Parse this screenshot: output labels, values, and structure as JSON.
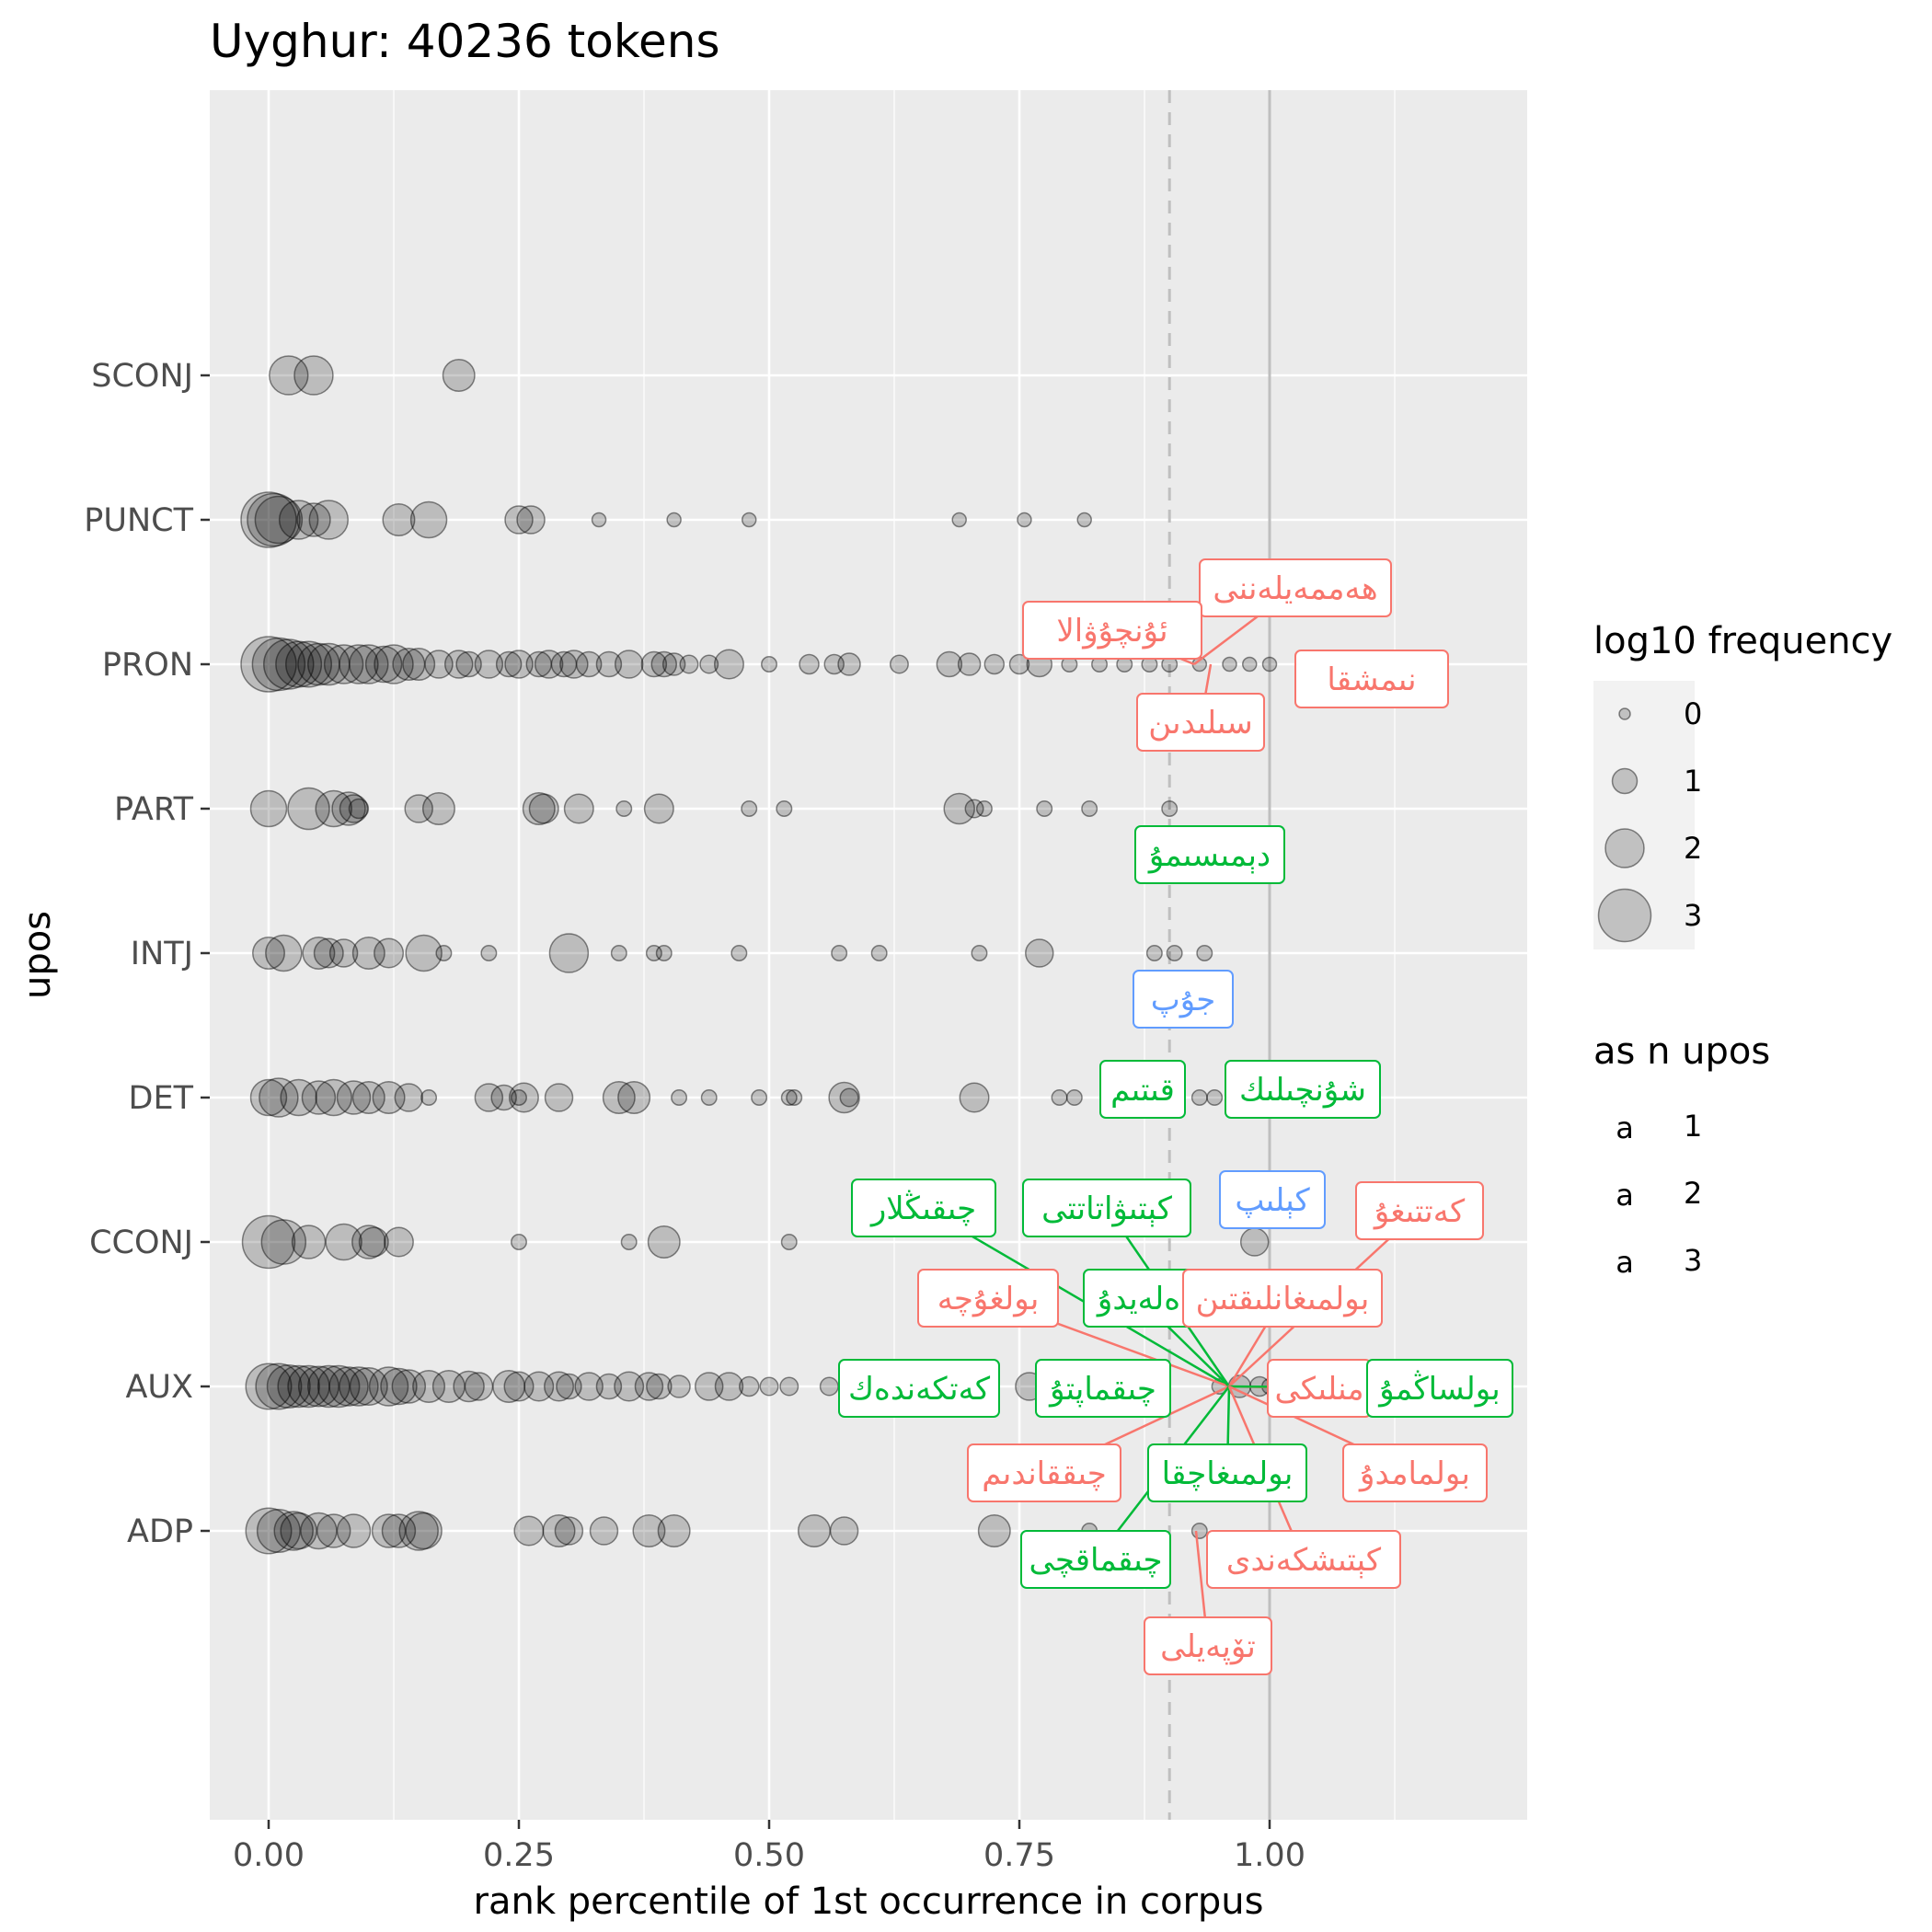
{
  "chart_data": {
    "type": "scatter",
    "title": "Uyghur: 40236 tokens",
    "xlabel": "rank percentile of 1st occurrence in corpus",
    "ylabel": "upos",
    "xlim": [
      -0.06,
      1.26
    ],
    "x_ticks": [
      "0.00",
      "0.25",
      "0.50",
      "0.75",
      "1.00"
    ],
    "x_tick_values": [
      0,
      0.25,
      0.5,
      0.75,
      1.0
    ],
    "categories": [
      "ADP",
      "AUX",
      "CCONJ",
      "DET",
      "INTJ",
      "PART",
      "PRON",
      "PUNCT",
      "SCONJ"
    ],
    "grid": true,
    "reference_lines": [
      {
        "x": 0.9,
        "style": "dashed",
        "color": "#bfbfbf"
      },
      {
        "x": 1.0,
        "style": "solid",
        "color": "#bfbfbf"
      }
    ],
    "series": [
      {
        "category": "SCONJ",
        "points": [
          [
            0.02,
            2
          ],
          [
            0.045,
            2
          ],
          [
            0.19,
            1.5
          ]
        ]
      },
      {
        "category": "PUNCT",
        "points": [
          [
            0.0,
            3.2
          ],
          [
            0.005,
            3
          ],
          [
            0.01,
            2.6
          ],
          [
            0.03,
            2
          ],
          [
            0.045,
            1.6
          ],
          [
            0.06,
            2
          ],
          [
            0.13,
            1.5
          ],
          [
            0.16,
            1.8
          ],
          [
            0.25,
            1.2
          ],
          [
            0.262,
            1.2
          ],
          [
            0.33,
            0.2
          ],
          [
            0.405,
            0.2
          ],
          [
            0.48,
            0.2
          ],
          [
            0.69,
            0.2
          ],
          [
            0.755,
            0.2
          ],
          [
            0.815,
            0.2
          ]
        ]
      },
      {
        "category": "PRON",
        "points": [
          [
            0.0,
            3.2
          ],
          [
            0.01,
            3
          ],
          [
            0.02,
            2.8
          ],
          [
            0.03,
            2.5
          ],
          [
            0.04,
            2.5
          ],
          [
            0.05,
            2.2
          ],
          [
            0.06,
            2.2
          ],
          [
            0.075,
            2
          ],
          [
            0.09,
            2
          ],
          [
            0.1,
            2
          ],
          [
            0.115,
            1.8
          ],
          [
            0.125,
            2
          ],
          [
            0.14,
            1.5
          ],
          [
            0.15,
            1.5
          ],
          [
            0.17,
            1.2
          ],
          [
            0.19,
            1.2
          ],
          [
            0.2,
            1
          ],
          [
            0.22,
            1.2
          ],
          [
            0.24,
            1
          ],
          [
            0.25,
            1.2
          ],
          [
            0.27,
            1
          ],
          [
            0.28,
            1.2
          ],
          [
            0.295,
            1
          ],
          [
            0.305,
            1.2
          ],
          [
            0.32,
            1
          ],
          [
            0.34,
            1
          ],
          [
            0.36,
            1.2
          ],
          [
            0.385,
            1
          ],
          [
            0.395,
            1
          ],
          [
            0.405,
            0.8
          ],
          [
            0.42,
            0.5
          ],
          [
            0.44,
            0.5
          ],
          [
            0.46,
            1.3
          ],
          [
            0.5,
            0.3
          ],
          [
            0.54,
            0.6
          ],
          [
            0.565,
            0.6
          ],
          [
            0.58,
            0.8
          ],
          [
            0.63,
            0.5
          ],
          [
            0.68,
            1
          ],
          [
            0.7,
            0.8
          ],
          [
            0.725,
            0.6
          ],
          [
            0.75,
            0.6
          ],
          [
            0.77,
            1
          ],
          [
            0.8,
            0.3
          ],
          [
            0.83,
            0.3
          ],
          [
            0.855,
            0.3
          ],
          [
            0.88,
            0.3
          ],
          [
            0.9,
            0.3
          ],
          [
            0.93,
            0.2
          ],
          [
            0.96,
            0.2
          ],
          [
            0.98,
            0.2
          ],
          [
            1.0,
            0.2
          ]
        ]
      },
      {
        "category": "PART",
        "points": [
          [
            0.0,
            1.8
          ],
          [
            0.04,
            2.2
          ],
          [
            0.065,
            1.8
          ],
          [
            0.08,
            1.6
          ],
          [
            0.085,
            1.2
          ],
          [
            0.09,
            0.6
          ],
          [
            0.15,
            1.2
          ],
          [
            0.17,
            1.5
          ],
          [
            0.27,
            1.5
          ],
          [
            0.275,
            1.3
          ],
          [
            0.31,
            1.3
          ],
          [
            0.355,
            0.3
          ],
          [
            0.39,
            1.3
          ],
          [
            0.48,
            0.3
          ],
          [
            0.515,
            0.3
          ],
          [
            0.69,
            1.4
          ],
          [
            0.705,
            0.5
          ],
          [
            0.715,
            0.3
          ],
          [
            0.775,
            0.3
          ],
          [
            0.82,
            0.3
          ],
          [
            0.9,
            0.3
          ]
        ]
      },
      {
        "category": "INTJ",
        "points": [
          [
            0.0,
            1.5
          ],
          [
            0.015,
            1.8
          ],
          [
            0.05,
            1.5
          ],
          [
            0.06,
            1.3
          ],
          [
            0.075,
            1.2
          ],
          [
            0.1,
            1.5
          ],
          [
            0.12,
            1.3
          ],
          [
            0.155,
            1.8
          ],
          [
            0.175,
            0.3
          ],
          [
            0.22,
            0.3
          ],
          [
            0.3,
            2
          ],
          [
            0.35,
            0.3
          ],
          [
            0.385,
            0.3
          ],
          [
            0.395,
            0.3
          ],
          [
            0.47,
            0.3
          ],
          [
            0.57,
            0.3
          ],
          [
            0.61,
            0.3
          ],
          [
            0.71,
            0.3
          ],
          [
            0.77,
            1.2
          ],
          [
            0.885,
            0.3
          ],
          [
            0.905,
            0.3
          ],
          [
            0.935,
            0.3
          ]
        ]
      },
      {
        "category": "DET",
        "points": [
          [
            0.0,
            1.8
          ],
          [
            0.01,
            2
          ],
          [
            0.03,
            1.8
          ],
          [
            0.05,
            1.6
          ],
          [
            0.065,
            1.8
          ],
          [
            0.085,
            1.6
          ],
          [
            0.1,
            1.5
          ],
          [
            0.12,
            1.5
          ],
          [
            0.14,
            1.2
          ],
          [
            0.16,
            0.3
          ],
          [
            0.22,
            1.2
          ],
          [
            0.235,
            1
          ],
          [
            0.25,
            0.3
          ],
          [
            0.255,
            1.3
          ],
          [
            0.29,
            1.2
          ],
          [
            0.35,
            1.5
          ],
          [
            0.365,
            1.5
          ],
          [
            0.41,
            0.3
          ],
          [
            0.44,
            0.3
          ],
          [
            0.49,
            0.3
          ],
          [
            0.52,
            0.3
          ],
          [
            0.525,
            0.3
          ],
          [
            0.575,
            1.4
          ],
          [
            0.58,
            0.5
          ],
          [
            0.705,
            1.3
          ],
          [
            0.79,
            0.3
          ],
          [
            0.805,
            0.3
          ],
          [
            0.93,
            0.3
          ],
          [
            0.945,
            0.3
          ],
          [
            0.965,
            0.3
          ]
        ]
      },
      {
        "category": "CCONJ",
        "points": [
          [
            0.0,
            3
          ],
          [
            0.015,
            2.4
          ],
          [
            0.04,
            1.6
          ],
          [
            0.075,
            1.8
          ],
          [
            0.1,
            1.6
          ],
          [
            0.105,
            1.3
          ],
          [
            0.13,
            1.3
          ],
          [
            0.25,
            0.3
          ],
          [
            0.36,
            0.3
          ],
          [
            0.395,
            1.5
          ],
          [
            0.52,
            0.3
          ],
          [
            0.985,
            1.2
          ]
        ]
      },
      {
        "category": "AUX",
        "points": [
          [
            0.0,
            2.5
          ],
          [
            0.01,
            2.5
          ],
          [
            0.02,
            2.3
          ],
          [
            0.03,
            2.2
          ],
          [
            0.04,
            2.2
          ],
          [
            0.05,
            2.1
          ],
          [
            0.06,
            2.2
          ],
          [
            0.07,
            2.2
          ],
          [
            0.08,
            2
          ],
          [
            0.09,
            2
          ],
          [
            0.1,
            1.9
          ],
          [
            0.12,
            2
          ],
          [
            0.13,
            1.8
          ],
          [
            0.14,
            1.6
          ],
          [
            0.16,
            1.5
          ],
          [
            0.18,
            1.5
          ],
          [
            0.2,
            1.4
          ],
          [
            0.21,
            1.2
          ],
          [
            0.24,
            1.5
          ],
          [
            0.25,
            1.3
          ],
          [
            0.27,
            1.3
          ],
          [
            0.29,
            1.3
          ],
          [
            0.3,
            1
          ],
          [
            0.32,
            1.2
          ],
          [
            0.34,
            1
          ],
          [
            0.36,
            1.3
          ],
          [
            0.38,
            1.2
          ],
          [
            0.39,
            1
          ],
          [
            0.41,
            0.8
          ],
          [
            0.44,
            1.2
          ],
          [
            0.46,
            1.2
          ],
          [
            0.48,
            0.6
          ],
          [
            0.5,
            0.5
          ],
          [
            0.52,
            0.5
          ],
          [
            0.56,
            0.5
          ],
          [
            0.58,
            0.5
          ],
          [
            0.6,
            0.5
          ],
          [
            0.64,
            0.8
          ],
          [
            0.66,
            0.6
          ],
          [
            0.7,
            0.5
          ],
          [
            0.72,
            0.5
          ],
          [
            0.76,
            1.2
          ],
          [
            0.78,
            0.6
          ],
          [
            0.82,
            0.3
          ],
          [
            0.95,
            0.3
          ],
          [
            0.97,
            0.8
          ],
          [
            0.99,
            0.6
          ],
          [
            1.0,
            0.3
          ]
        ]
      },
      {
        "category": "ADP",
        "points": [
          [
            0.0,
            2.5
          ],
          [
            0.01,
            2.3
          ],
          [
            0.025,
            2
          ],
          [
            0.03,
            1.8
          ],
          [
            0.05,
            1.8
          ],
          [
            0.065,
            1.6
          ],
          [
            0.085,
            1.6
          ],
          [
            0.12,
            1.6
          ],
          [
            0.13,
            1.6
          ],
          [
            0.15,
            2
          ],
          [
            0.155,
            1.8
          ],
          [
            0.26,
            1.3
          ],
          [
            0.29,
            1.5
          ],
          [
            0.3,
            1.2
          ],
          [
            0.335,
            1.2
          ],
          [
            0.38,
            1.5
          ],
          [
            0.405,
            1.5
          ],
          [
            0.545,
            1.5
          ],
          [
            0.575,
            1.2
          ],
          [
            0.725,
            1.5
          ],
          [
            0.82,
            0.3
          ],
          [
            0.93,
            0.3
          ]
        ]
      }
    ],
    "annotations": [
      {
        "label": "ھەممەيلەننى",
        "upos": "PRON",
        "n_upos": 1
      },
      {
        "label": "ئۇنچۇۋالا",
        "upos": "PRON",
        "n_upos": 1
      },
      {
        "label": "نىمشقا",
        "upos": "PRON",
        "n_upos": 1
      },
      {
        "label": "سىلىدىن",
        "upos": "PRON",
        "n_upos": 1
      },
      {
        "label": "دېمىسىمۇ",
        "upos": "PART",
        "n_upos": 2
      },
      {
        "label": "جۇپ",
        "upos": "INTJ",
        "n_upos": 3
      },
      {
        "label": "قىتىم",
        "upos": "DET",
        "n_upos": 2
      },
      {
        "label": "شۇنچىلىك",
        "upos": "DET",
        "n_upos": 2
      },
      {
        "label": "كېلىپ",
        "upos": "CCONJ",
        "n_upos": 3
      },
      {
        "label": "چىقىڭلار",
        "upos": "AUX",
        "n_upos": 2
      },
      {
        "label": "كېتىۋاتاتتى",
        "upos": "AUX",
        "n_upos": 2
      },
      {
        "label": "كەتتىغۇ",
        "upos": "AUX",
        "n_upos": 1
      },
      {
        "label": "بولغۇچە",
        "upos": "AUX",
        "n_upos": 1
      },
      {
        "label": "ەلەيدۇ",
        "upos": "AUX",
        "n_upos": 2
      },
      {
        "label": "بولمىغانلىقتىن",
        "upos": "AUX",
        "n_upos": 1
      },
      {
        "label": "كەتكەندەك",
        "upos": "AUX",
        "n_upos": 2
      },
      {
        "label": "چىقماپتۇ",
        "upos": "AUX",
        "n_upos": 2
      },
      {
        "label": "منلىكى",
        "upos": "AUX",
        "n_upos": 1
      },
      {
        "label": "بولساڭمۇ",
        "upos": "AUX",
        "n_upos": 2
      },
      {
        "label": "چىققاندىم",
        "upos": "AUX",
        "n_upos": 1
      },
      {
        "label": "بولمىغاچقا",
        "upos": "AUX",
        "n_upos": 2
      },
      {
        "label": "بولمامدۇ",
        "upos": "AUX",
        "n_upos": 1
      },
      {
        "label": "چىقماقچى",
        "upos": "AUX",
        "n_upos": 2
      },
      {
        "label": "كېتىشكەندى",
        "upos": "AUX",
        "n_upos": 1
      },
      {
        "label": "تۆپەيلى",
        "upos": "ADP",
        "n_upos": 1
      }
    ],
    "legend_size": {
      "title": "log10 frequency",
      "items": [
        {
          "label": "0",
          "value": 0
        },
        {
          "label": "1",
          "value": 1
        },
        {
          "label": "2",
          "value": 2
        },
        {
          "label": "3",
          "value": 3
        }
      ]
    },
    "legend_color": {
      "title": "as n upos",
      "key_glyph": "a",
      "items": [
        {
          "label": "1",
          "color": "#F8766D"
        },
        {
          "label": "2",
          "color": "#00BA38"
        },
        {
          "label": "3",
          "color": "#619CFF"
        }
      ]
    },
    "colors": {
      "panel": "#EBEBEB",
      "grid": "#FFFFFF",
      "point": "#000000",
      "ref_line": "#BFBFBF"
    }
  }
}
